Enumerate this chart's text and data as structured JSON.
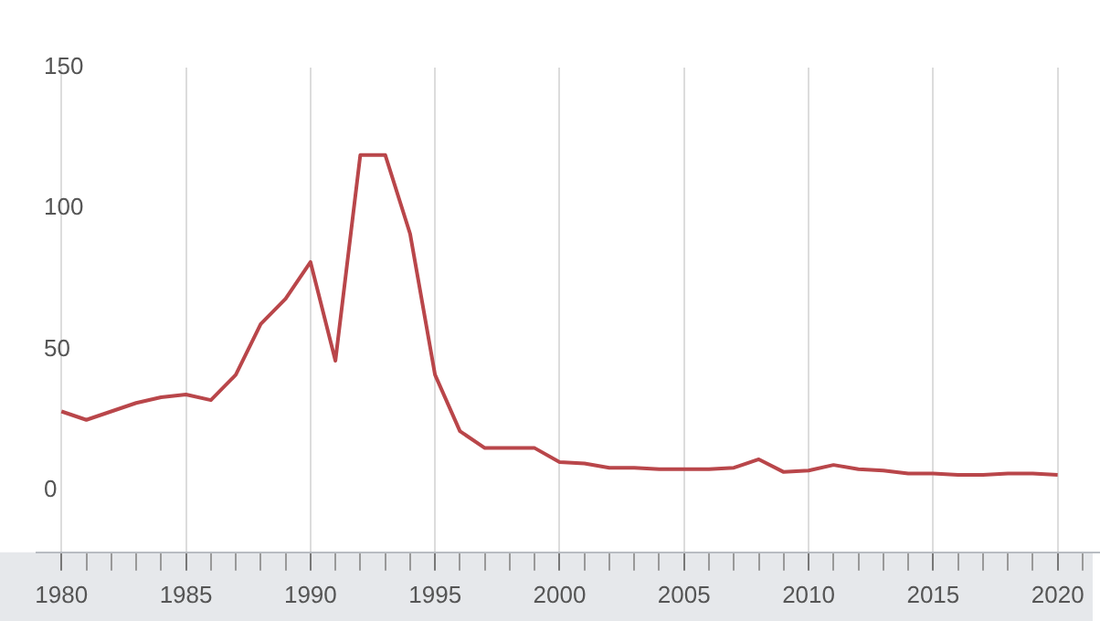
{
  "chart_data": {
    "type": "line",
    "x": [
      1980,
      1981,
      1982,
      1983,
      1984,
      1985,
      1986,
      1987,
      1988,
      1989,
      1990,
      1991,
      1992,
      1993,
      1994,
      1995,
      1996,
      1997,
      1998,
      1999,
      2000,
      2001,
      2002,
      2003,
      2004,
      2005,
      2006,
      2007,
      2008,
      2009,
      2010,
      2011,
      2012,
      2013,
      2014,
      2015,
      2016,
      2017,
      2018,
      2019,
      2020
    ],
    "series": [
      {
        "color": "#b9464a",
        "values": [
          28,
          25,
          28,
          31,
          33,
          34,
          32,
          41,
          59,
          68,
          81,
          46,
          119,
          119,
          91,
          41,
          21,
          15,
          15,
          15,
          10,
          9.5,
          8,
          8,
          7.5,
          7.5,
          7.5,
          8,
          11,
          6.5,
          7,
          9,
          7.5,
          7,
          6,
          6,
          5.5,
          5.5,
          6,
          6,
          5.5
        ]
      }
    ],
    "xlim": [
      1979,
      2021.7
    ],
    "xticks": [
      1980,
      {
        "value": 1981,
        "label": null
      },
      {
        "value": 1982,
        "label": null
      },
      {
        "value": 1983,
        "label": null
      },
      {
        "value": 1984,
        "label": null
      },
      1985,
      {
        "value": 1986,
        "label": null
      },
      {
        "value": 1987,
        "label": null
      },
      {
        "value": 1988,
        "label": null
      },
      {
        "value": 1989,
        "label": null
      },
      1990,
      {
        "value": 1991,
        "label": null
      },
      {
        "value": 1992,
        "label": null
      },
      {
        "value": 1993,
        "label": null
      },
      {
        "value": 1994,
        "label": null
      },
      1995,
      {
        "value": 1996,
        "label": null
      },
      {
        "value": 1997,
        "label": null
      },
      {
        "value": 1998,
        "label": null
      },
      {
        "value": 1999,
        "label": null
      },
      2000,
      {
        "value": 2001,
        "label": null
      },
      {
        "value": 2002,
        "label": null
      },
      {
        "value": 2003,
        "label": null
      },
      {
        "value": 2004,
        "label": null
      },
      2005,
      {
        "value": 2006,
        "label": null
      },
      {
        "value": 2007,
        "label": null
      },
      {
        "value": 2008,
        "label": null
      },
      {
        "value": 2009,
        "label": null
      },
      2010,
      {
        "value": 2011,
        "label": null
      },
      {
        "value": 2012,
        "label": null
      },
      {
        "value": 2013,
        "label": null
      },
      {
        "value": 2014,
        "label": null
      },
      2015,
      {
        "value": 2016,
        "label": null
      },
      {
        "value": 2017,
        "label": null
      },
      {
        "value": 2018,
        "label": null
      },
      {
        "value": 2019,
        "label": null
      },
      2020,
      {
        "value": 2021,
        "label": null
      }
    ],
    "ylim": [
      -22,
      150
    ],
    "yticks": [
      0,
      50,
      100,
      150
    ],
    "grid": "x",
    "legend": false,
    "marker": "none",
    "line_style": "solid"
  }
}
